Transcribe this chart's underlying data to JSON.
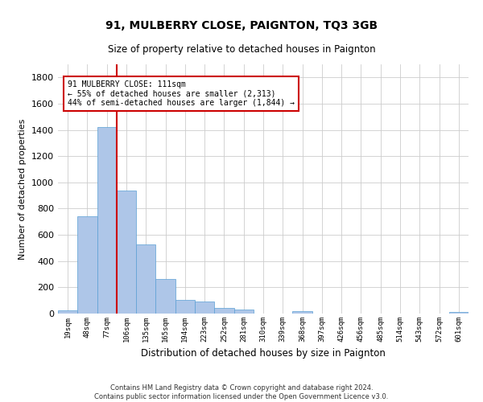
{
  "title": "91, MULBERRY CLOSE, PAIGNTON, TQ3 3GB",
  "subtitle": "Size of property relative to detached houses in Paignton",
  "xlabel": "Distribution of detached houses by size in Paignton",
  "ylabel": "Number of detached properties",
  "footer_line1": "Contains HM Land Registry data © Crown copyright and database right 2024.",
  "footer_line2": "Contains public sector information licensed under the Open Government Licence v3.0.",
  "bin_labels": [
    "19sqm",
    "48sqm",
    "77sqm",
    "106sqm",
    "135sqm",
    "165sqm",
    "194sqm",
    "223sqm",
    "252sqm",
    "281sqm",
    "310sqm",
    "339sqm",
    "368sqm",
    "397sqm",
    "426sqm",
    "456sqm",
    "485sqm",
    "514sqm",
    "543sqm",
    "572sqm",
    "601sqm"
  ],
  "bar_values": [
    22,
    740,
    1420,
    940,
    530,
    265,
    105,
    93,
    40,
    28,
    0,
    0,
    16,
    0,
    0,
    0,
    0,
    0,
    0,
    0,
    14
  ],
  "bar_color": "#aec6e8",
  "bar_edgecolor": "#5a9fd4",
  "vline_x_idx": 3,
  "vline_color": "#cc0000",
  "annotation_line1": "91 MULBERRY CLOSE: 111sqm",
  "annotation_line2": "← 55% of detached houses are smaller (2,313)",
  "annotation_line3": "44% of semi-detached houses are larger (1,844) →",
  "annotation_box_color": "#cc0000",
  "annotation_text_color": "#000000",
  "ylim": [
    0,
    1900
  ],
  "yticks": [
    0,
    200,
    400,
    600,
    800,
    1000,
    1200,
    1400,
    1600,
    1800
  ],
  "background_color": "#ffffff",
  "grid_color": "#cccccc"
}
